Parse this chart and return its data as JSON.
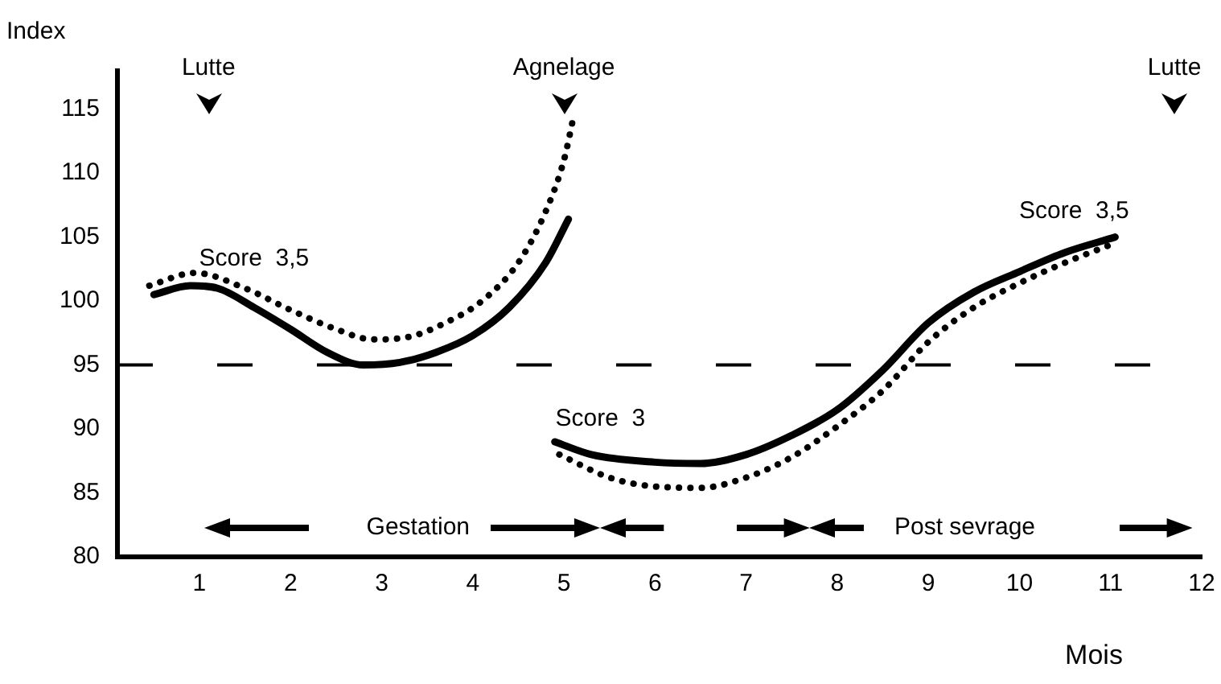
{
  "chart_data": {
    "type": "line",
    "xlabel": "Mois",
    "ylabel": "Index",
    "xlim": [
      0.1,
      12
    ],
    "xticks": [
      1,
      2,
      3,
      4,
      5,
      6,
      7,
      8,
      9,
      10,
      11,
      12
    ],
    "ylim": [
      80,
      118
    ],
    "yticks": [
      80,
      85,
      90,
      95,
      100,
      105,
      110,
      115
    ],
    "grid": false,
    "legend": false,
    "marker": "none",
    "series": [
      {
        "color": "#000000",
        "line_style": "solid",
        "x": [
          0.5,
          0.9,
          1.2,
          1.6,
          2,
          2.4,
          2.8,
          3.2,
          3.6,
          4,
          4.4,
          4.8,
          5.05
        ],
        "values": [
          100.5,
          101.2,
          101,
          99.5,
          97.8,
          96,
          95,
          95.2,
          96,
          97.3,
          99.5,
          103,
          106.4
        ]
      },
      {
        "color": "#000000",
        "line_style": "solid",
        "x": [
          4.9,
          5.3,
          6,
          6.5,
          7,
          7.5,
          8,
          8.5,
          9,
          9.5,
          10,
          10.5,
          11.05
        ],
        "values": [
          89,
          88,
          87.4,
          87.3,
          88,
          89.5,
          91.5,
          94.6,
          98.3,
          100.7,
          102.3,
          103.8,
          105
        ]
      },
      {
        "color": "#000000",
        "line_style": "dotted",
        "x": [
          0.45,
          0.95,
          1.5,
          2,
          2.5,
          2.9,
          3.3,
          3.7,
          4.1,
          4.5,
          4.8,
          5,
          5.1
        ],
        "values": [
          101.2,
          102.2,
          101,
          99.3,
          97.8,
          97,
          97.2,
          98.3,
          100,
          103,
          107,
          111,
          114.2
        ]
      },
      {
        "color": "#000000",
        "line_style": "dotted",
        "x": [
          4.95,
          5.5,
          6,
          6.5,
          7,
          7.5,
          8,
          8.5,
          9,
          9.5,
          10,
          10.5,
          11
        ],
        "values": [
          88,
          86.2,
          85.5,
          85.4,
          86.2,
          87.8,
          90.2,
          93,
          96.8,
          99.5,
          101.4,
          103,
          104.4
        ]
      }
    ],
    "ref_lines": [
      {
        "axis": "y",
        "value": 95,
        "line_style": "dashed",
        "color": "#000000"
      }
    ],
    "annotations": [
      "Lutte",
      "Agnelage",
      "Lutte",
      "Score  3,5",
      "Score  3",
      "Score  3,5",
      "Gestation",
      "Post sevrage"
    ]
  }
}
